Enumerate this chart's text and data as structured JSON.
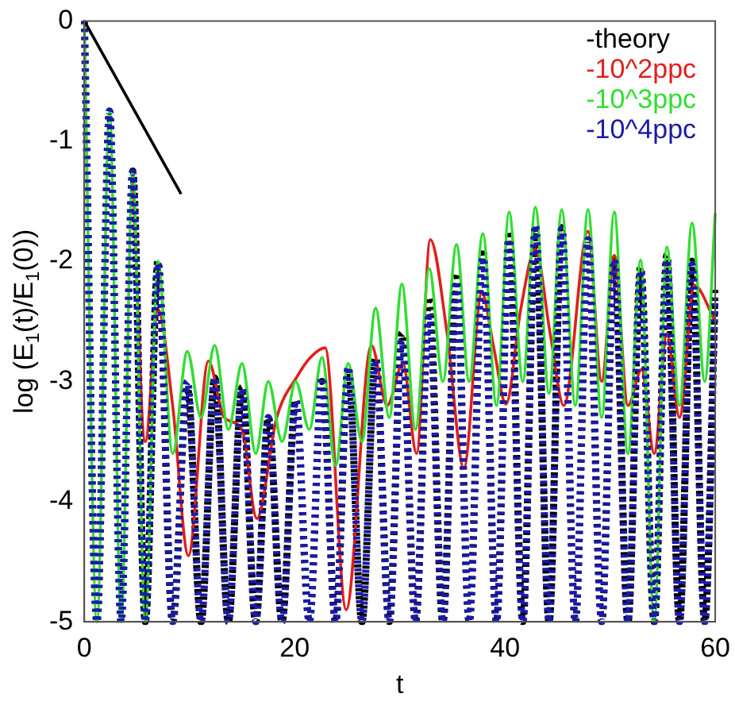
{
  "chart_data": {
    "type": "line",
    "xlabel": "t",
    "ylabel": "log (E$_{1}$(t)/E$_{1}$(0))",
    "x": [
      0,
      1.2,
      2.4,
      3.5,
      4.6,
      5.8,
      7.0,
      8.4,
      9.8,
      11.1,
      12.4,
      13.7,
      15.0,
      16.3,
      17.5,
      18.8,
      20.1,
      21.4,
      22.6,
      23.9,
      25.1,
      26.4,
      27.7,
      29.0,
      30.2,
      31.5,
      32.8,
      34.1,
      35.4,
      36.6,
      37.9,
      39.2,
      40.4,
      41.7,
      42.9,
      44.2,
      45.4,
      46.7,
      47.9,
      49.2,
      50.4,
      51.7,
      52.9,
      54.2,
      55.4,
      56.6,
      57.8,
      59.0,
      60
    ],
    "series": [
      {
        "name": "-theory",
        "color": "#000000",
        "line_style": "dotted",
        "values": [
          0,
          -5,
          -0.75,
          -5,
          -1.25,
          -5,
          -2.0,
          -5,
          -3.05,
          -5,
          -2.97,
          -5,
          -3.05,
          -5,
          -3.3,
          -5,
          -3.15,
          -5,
          -3.0,
          -5,
          -2.9,
          -5,
          -2.8,
          -5,
          -2.6,
          -5,
          -2.3,
          -5,
          -2.1,
          -5,
          -1.9,
          -5,
          -1.75,
          -5,
          -1.75,
          -5,
          -1.72,
          -5,
          -1.85,
          -5,
          -1.95,
          -5,
          -2.05,
          -5,
          -1.95,
          -5,
          -2.0,
          -5,
          -2.2
        ]
      },
      {
        "name": "-10^2ppc",
        "color": "#e0201b",
        "line_style": "solid",
        "x": [
          4.6,
          5.8,
          7.0,
          8.4,
          9.9,
          11.8,
          13.3,
          15.0,
          16.4,
          18.3,
          20.3,
          21.5,
          22.9,
          24.9,
          27.3,
          28.8,
          30.3,
          31.6,
          32.9,
          34.5,
          36.1,
          37.8,
          38.9,
          40.1,
          41.5,
          42.9,
          44.3,
          45.6,
          47.9,
          49.2,
          50.4,
          51.7,
          53.0,
          54.2,
          55.4,
          56.6,
          58.0,
          60
        ],
        "values": [
          -1.25,
          -3.5,
          -2.4,
          -3.2,
          -4.45,
          -2.83,
          -3.3,
          -3.4,
          -4.14,
          -3.3,
          -2.95,
          -2.8,
          -2.72,
          -4.9,
          -2.7,
          -3.2,
          -2.85,
          -3.6,
          -1.82,
          -2.6,
          -3.72,
          -2.26,
          -2.7,
          -3.19,
          -2.4,
          -1.9,
          -2.6,
          -3.2,
          -1.75,
          -3.0,
          -1.95,
          -3.2,
          -2.9,
          -3.6,
          -2.6,
          -3.3,
          -2.2,
          -2.5
        ]
      },
      {
        "name": "-10^3ppc",
        "color": "#33dd33",
        "line_style": "solid",
        "values": [
          0,
          -5,
          -0.75,
          -5,
          -1.25,
          -5,
          -2.0,
          -3.6,
          -2.75,
          -3.3,
          -2.7,
          -3.4,
          -2.85,
          -3.6,
          -3.0,
          -3.5,
          -3.0,
          -3.4,
          -2.8,
          -3.7,
          -2.85,
          -3.5,
          -2.39,
          -3.3,
          -2.19,
          -3.4,
          -2.06,
          -3.0,
          -1.86,
          -3.0,
          -1.77,
          -3.2,
          -1.59,
          -3.0,
          -1.55,
          -3.1,
          -1.57,
          -3.2,
          -1.57,
          -3.3,
          -1.59,
          -3.6,
          -1.99,
          -5,
          -1.88,
          -3.2,
          -1.68,
          -3.0,
          -1.6
        ]
      },
      {
        "name": "-10^4ppc",
        "color": "#1a1aaa",
        "line_style": "dotted",
        "values": [
          0,
          -5,
          -0.75,
          -5,
          -1.26,
          -5,
          -2.02,
          -5,
          -3.0,
          -5,
          -2.97,
          -5,
          -3.06,
          -5,
          -3.3,
          -5,
          -3.16,
          -5,
          -2.97,
          -5,
          -2.88,
          -5,
          -2.82,
          -5,
          -2.66,
          -5,
          -2.43,
          -5,
          -2.17,
          -5,
          -1.97,
          -5,
          -1.82,
          -5,
          -1.7,
          -5,
          -1.73,
          -5,
          -1.82,
          -5,
          -1.99,
          -5,
          -2.08,
          -5,
          -1.99,
          -5,
          -2.03,
          -5,
          -2.3
        ]
      },
      {
        "type": "line",
        "color": "#000000",
        "line_style": "solid",
        "x": [
          0,
          9.2
        ],
        "values": [
          0,
          -1.44
        ]
      }
    ],
    "xlim": [
      0,
      60
    ],
    "xticks": [
      0,
      20,
      40,
      60
    ],
    "ylim": [
      -5,
      0
    ],
    "yticks": [
      -5,
      -4,
      -3,
      -2,
      -1,
      0
    ],
    "grid": false,
    "legend": "top right"
  }
}
